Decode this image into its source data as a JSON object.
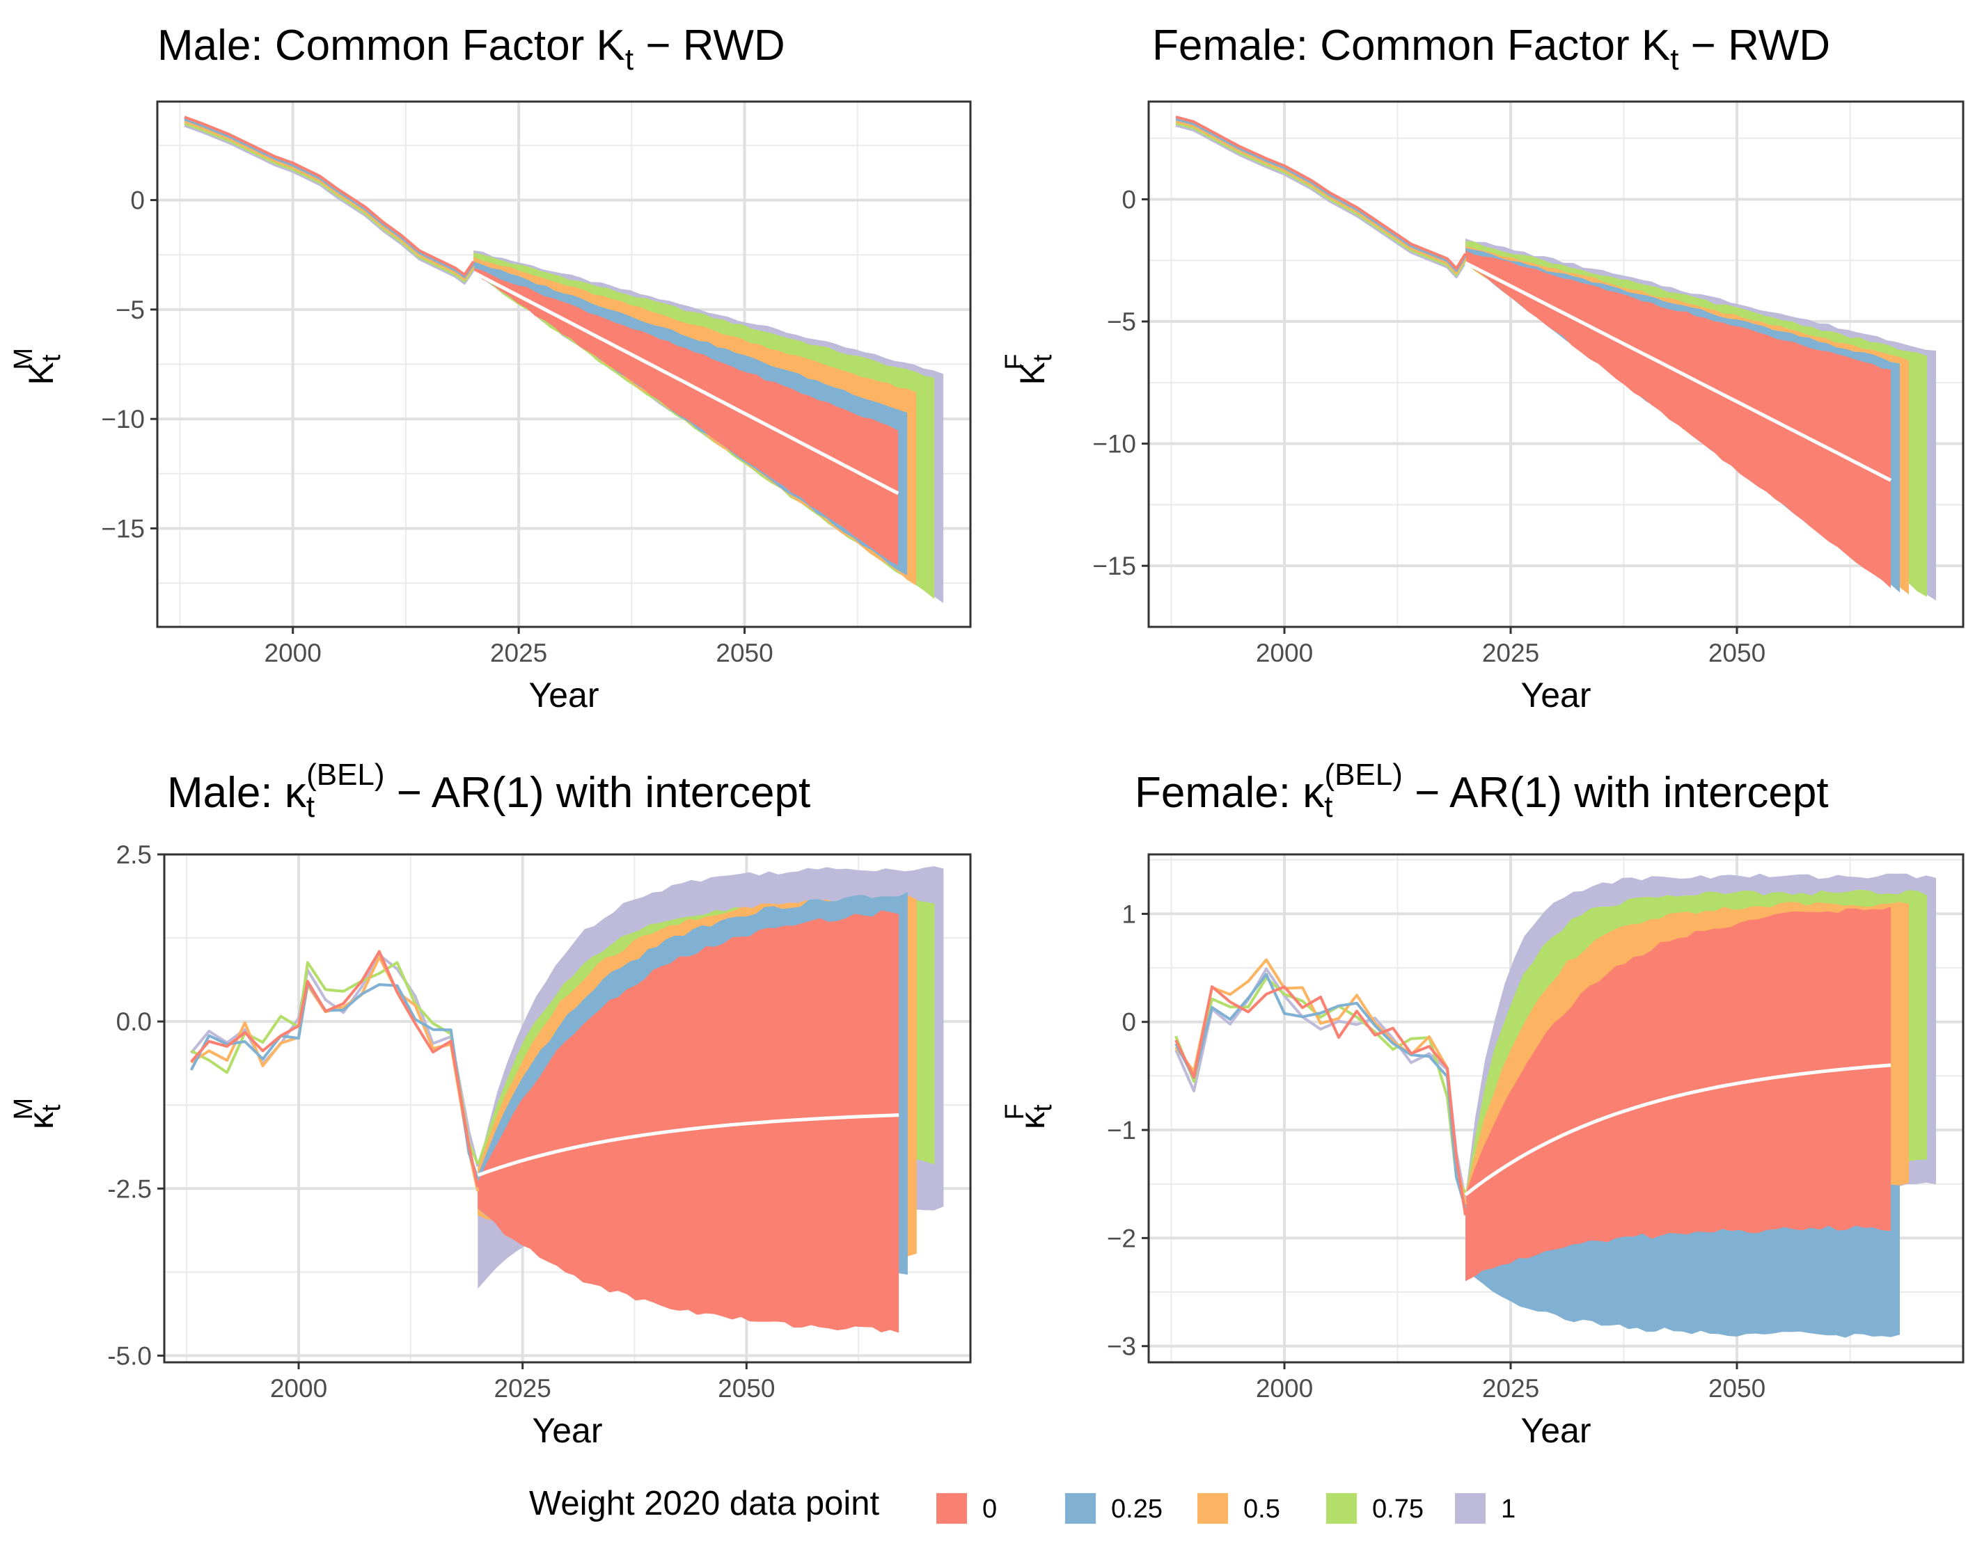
{
  "figure": {
    "legend_title": "Weight 2020 data point",
    "legend_items": [
      {
        "label": "0",
        "color": "#FA8072"
      },
      {
        "label": "0.25",
        "color": "#80B1D3"
      },
      {
        "label": "0.5",
        "color": "#FDB462"
      },
      {
        "label": "0.75",
        "color": "#B3DE69"
      },
      {
        "label": "1",
        "color": "#BEBADA"
      }
    ]
  },
  "chart_data": [
    {
      "type": "area",
      "title": {
        "prefix": "Male: Common Factor K",
        "sub": "t",
        "suffix": " − RWD"
      },
      "xlabel": "Year",
      "ylabel": {
        "base": "K",
        "sub": "t",
        "sup": "M"
      },
      "xlim": [
        1985,
        2075
      ],
      "ylim": [
        -19.5,
        4.5
      ],
      "xticks": [
        2000,
        2025,
        2050
      ],
      "yticks": [
        0,
        -5,
        -10,
        -15
      ],
      "grid": true,
      "historical": {
        "x": [
          1988,
          1990,
          1993,
          1995,
          1998,
          2000,
          2003,
          2005,
          2008,
          2010,
          2012,
          2014,
          2016,
          2018,
          2019,
          2020
        ],
        "y": [
          3.6,
          3.3,
          2.8,
          2.4,
          1.8,
          1.5,
          0.9,
          0.3,
          -0.5,
          -1.2,
          -1.8,
          -2.5,
          -2.9,
          -3.3,
          -3.6,
          -3.0
        ]
      },
      "forecast_x": [
        2020,
        2067
      ],
      "central_line": [
        -3.3,
        -13.4
      ],
      "fans": [
        {
          "name": "1",
          "x_end": 2072,
          "start": [
            -2.3,
            -3.3
          ],
          "end": [
            -7.9,
            -18.4
          ]
        },
        {
          "name": "0.75",
          "x_end": 2071,
          "start": [
            -2.4,
            -3.3
          ],
          "end": [
            -8.1,
            -18.2
          ]
        },
        {
          "name": "0.5",
          "x_end": 2069,
          "start": [
            -2.6,
            -3.2
          ],
          "end": [
            -8.8,
            -17.6
          ]
        },
        {
          "name": "0.25",
          "x_end": 2068,
          "start": [
            -2.8,
            -3.2
          ],
          "end": [
            -9.7,
            -17.2
          ]
        },
        {
          "name": "0",
          "x_end": 2067,
          "start": [
            -3.1,
            -3.3
          ],
          "end": [
            -10.5,
            -16.7
          ]
        }
      ]
    },
    {
      "type": "area",
      "title": {
        "prefix": "Female: Common Factor K",
        "sub": "t",
        "suffix": " − RWD"
      },
      "xlabel": "Year",
      "ylabel": {
        "base": "K",
        "sub": "t",
        "sup": "F"
      },
      "xlim": [
        1985,
        2075
      ],
      "ylim": [
        -17.5,
        4.0
      ],
      "xticks": [
        2000,
        2025,
        2050
      ],
      "yticks": [
        0,
        -5,
        -10,
        -15
      ],
      "grid": true,
      "historical": {
        "x": [
          1988,
          1990,
          1993,
          1995,
          1998,
          2000,
          2003,
          2005,
          2008,
          2010,
          2012,
          2014,
          2016,
          2018,
          2019,
          2020
        ],
        "y": [
          3.2,
          3.0,
          2.4,
          2.0,
          1.5,
          1.2,
          0.6,
          0.1,
          -0.5,
          -1.0,
          -1.5,
          -2.0,
          -2.3,
          -2.6,
          -3.0,
          -2.4
        ]
      },
      "forecast_x": [
        2020,
        2067
      ],
      "central_line": [
        -2.6,
        -11.5
      ],
      "fans": [
        {
          "name": "1",
          "x_end": 2072,
          "start": [
            -1.6,
            -2.6
          ],
          "end": [
            -6.2,
            -16.4
          ]
        },
        {
          "name": "0.75",
          "x_end": 2071,
          "start": [
            -1.7,
            -2.6
          ],
          "end": [
            -6.4,
            -16.3
          ]
        },
        {
          "name": "0.5",
          "x_end": 2069,
          "start": [
            -1.9,
            -2.6
          ],
          "end": [
            -6.6,
            -16.2
          ]
        },
        {
          "name": "0.25",
          "x_end": 2068,
          "start": [
            -2.0,
            -2.6
          ],
          "end": [
            -6.7,
            -16.1
          ]
        },
        {
          "name": "0",
          "x_end": 2067,
          "start": [
            -2.1,
            -2.6
          ],
          "end": [
            -7.0,
            -15.9
          ]
        }
      ]
    },
    {
      "type": "area",
      "title": {
        "prefix": "Male: κ",
        "sub": "t",
        "sup": "(BEL)",
        "suffix": " − AR(1) with intercept"
      },
      "xlabel": "Year",
      "ylabel": {
        "base": "κ",
        "sub": "t",
        "sup": "M"
      },
      "xlim": [
        1985,
        2075
      ],
      "ylim": [
        -5.1,
        2.5
      ],
      "xticks": [
        2000,
        2025,
        2050
      ],
      "yticks": [
        2.5,
        0.0,
        -2.5,
        -5.0
      ],
      "ytick_labels": [
        "2.5",
        "0.0",
        "-2.5",
        "-5.0"
      ],
      "grid": true,
      "historical": {
        "x": [
          1988,
          1990,
          1992,
          1994,
          1996,
          1998,
          2000,
          2001,
          2003,
          2005,
          2007,
          2009,
          2011,
          2013,
          2015,
          2017,
          2019,
          2020
        ],
        "y": [
          -0.6,
          -0.3,
          -0.6,
          -0.3,
          -0.5,
          -0.2,
          -0.1,
          0.8,
          0.2,
          0.4,
          0.6,
          0.8,
          0.7,
          0.2,
          -0.2,
          -0.4,
          -1.8,
          -2.3
        ]
      },
      "forecast_x": [
        2020,
        2067
      ],
      "central_line": [
        -2.3,
        -1.4
      ],
      "fans": [
        {
          "name": "1",
          "x_end": 2072,
          "start": [
            -2.2,
            -4.0
          ],
          "lower_end": -2.8,
          "upper_plateau": 2.3,
          "rate": 0.13
        },
        {
          "name": "0.75",
          "x_end": 2071,
          "start": [
            -2.1,
            -2.9
          ],
          "lower_end": -2.1,
          "upper_plateau": 1.8,
          "rate": 0.12
        },
        {
          "name": "0.5",
          "x_end": 2069,
          "start": [
            -2.2,
            -2.9
          ],
          "lower_end": -3.5,
          "upper_plateau": 1.9,
          "rate": 0.1
        },
        {
          "name": "0.25",
          "x_end": 2068,
          "start": [
            -2.3,
            -2.8
          ],
          "lower_end": -3.8,
          "upper_plateau": 2.0,
          "rate": 0.08
        },
        {
          "name": "0",
          "x_end": 2067,
          "start": [
            -2.4,
            -2.8
          ],
          "lower_end": -4.7,
          "upper_plateau": 1.8,
          "rate": 0.07
        }
      ]
    },
    {
      "type": "area",
      "title": {
        "prefix": "Female: κ",
        "sub": "t",
        "sup": "(BEL)",
        "suffix": " − AR(1) with intercept"
      },
      "xlabel": "Year",
      "ylabel": {
        "base": "κ",
        "sub": "t",
        "sup": "F"
      },
      "xlim": [
        1985,
        2075
      ],
      "ylim": [
        -3.15,
        1.55
      ],
      "xticks": [
        2000,
        2025,
        2050
      ],
      "yticks": [
        1,
        0,
        -1,
        -2,
        -3
      ],
      "grid": true,
      "historical": {
        "x": [
          1988,
          1990,
          1992,
          1994,
          1996,
          1998,
          2000,
          2002,
          2004,
          2006,
          2008,
          2010,
          2012,
          2014,
          2016,
          2018,
          2019,
          2020
        ],
        "y": [
          -0.3,
          -0.5,
          0.2,
          0.1,
          0.2,
          0.4,
          0.2,
          0.2,
          0.1,
          0.0,
          0.1,
          0.0,
          -0.2,
          -0.3,
          -0.3,
          -0.6,
          -1.3,
          -1.7
        ]
      },
      "forecast_x": [
        2020,
        2067
      ],
      "central_line": [
        -1.6,
        -0.4
      ],
      "fans": [
        {
          "name": "1",
          "x_end": 2072,
          "start": [
            -1.6,
            -2.4
          ],
          "lower_end": -1.5,
          "upper_plateau": 1.35,
          "rate": 0.25
        },
        {
          "name": "0.25",
          "x_end": 2068,
          "start": [
            -1.6,
            -2.3
          ],
          "lower_end": -2.9,
          "upper_plateau": 0.95,
          "rate": 0.12
        },
        {
          "name": "0.75",
          "x_end": 2071,
          "start": [
            -1.6,
            -1.6
          ],
          "lower_end": -1.3,
          "upper_plateau": 1.2,
          "rate": 0.2
        },
        {
          "name": "0.5",
          "x_end": 2069,
          "start": [
            -1.6,
            -1.8
          ],
          "lower_end": -1.5,
          "upper_plateau": 1.1,
          "rate": 0.14
        },
        {
          "name": "0",
          "x_end": 2067,
          "start": [
            -1.6,
            -2.4
          ],
          "lower_end": -1.9,
          "upper_plateau": 1.1,
          "rate": 0.09
        }
      ]
    }
  ]
}
